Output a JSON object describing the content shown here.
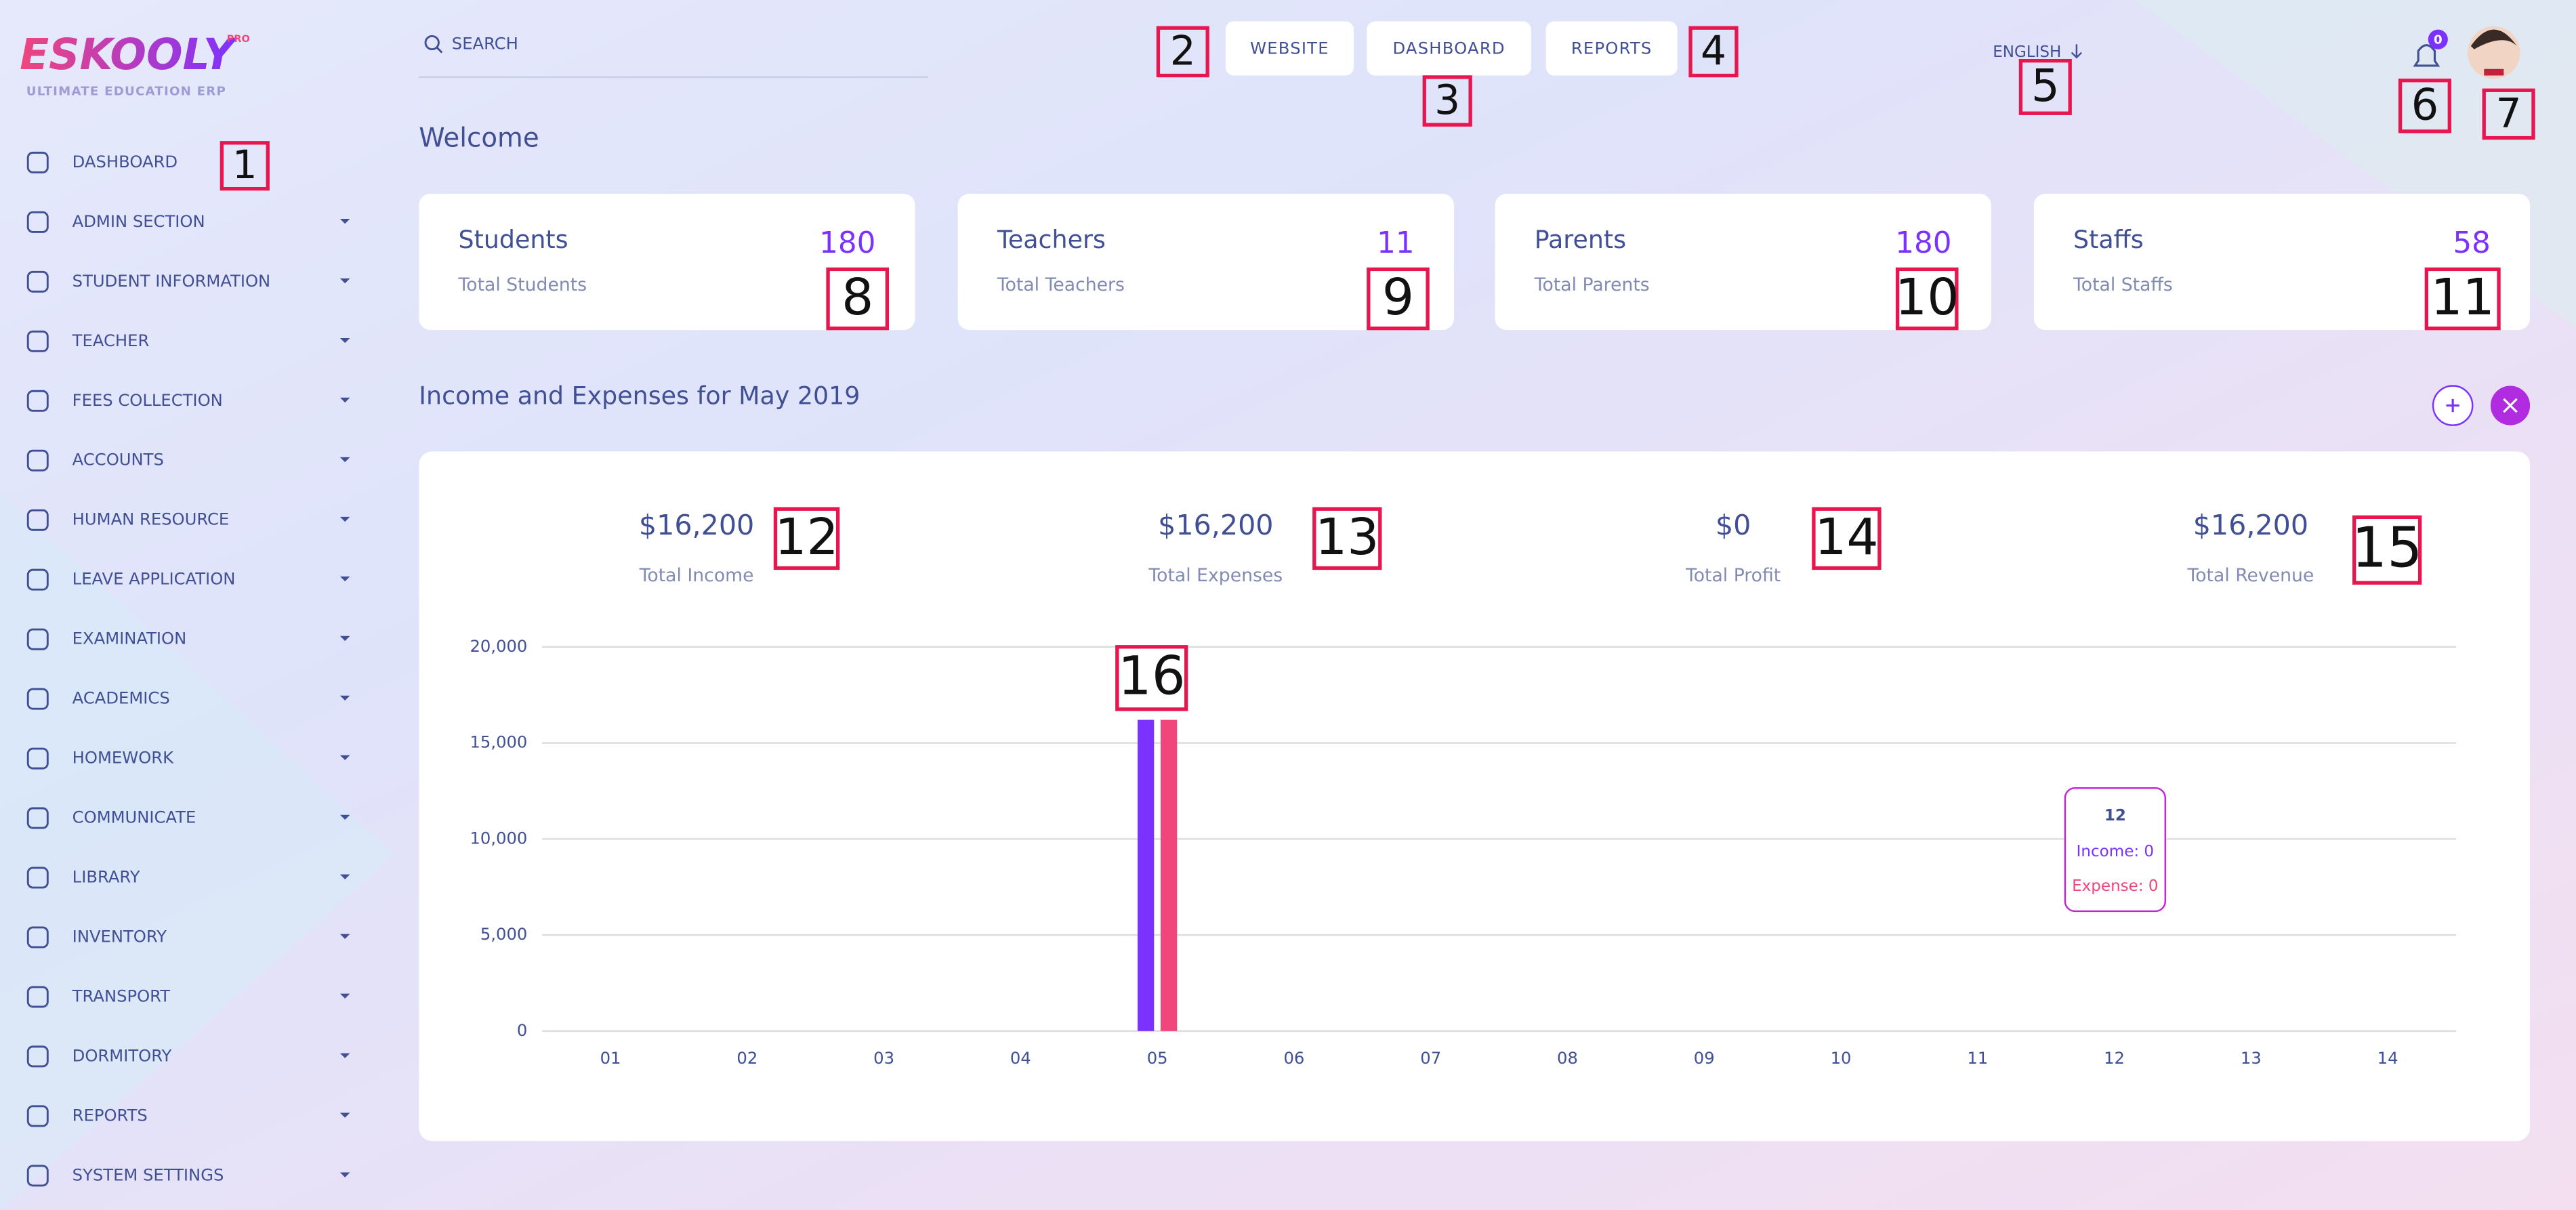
{
  "logo": {
    "name": "ESKOOLY",
    "badge": "PRO",
    "tagline": "ULTIMATE EDUCATION ERP"
  },
  "search": {
    "placeholder": "SEARCH"
  },
  "top_buttons": [
    "WEBSITE",
    "DASHBOARD",
    "REPORTS"
  ],
  "language": "ENGLISH",
  "notifications": {
    "count": 0
  },
  "sidebar": [
    "DASHBOARD",
    "ADMIN SECTION",
    "STUDENT INFORMATION",
    "TEACHER",
    "FEES COLLECTION",
    "ACCOUNTS",
    "HUMAN RESOURCE",
    "LEAVE APPLICATION",
    "EXAMINATION",
    "ACADEMICS",
    "HOMEWORK",
    "COMMUNICATE",
    "LIBRARY",
    "INVENTORY",
    "TRANSPORT",
    "DORMITORY",
    "REPORTS",
    "SYSTEM SETTINGS"
  ],
  "welcome": "Welcome",
  "cards": [
    {
      "title": "Students",
      "count": 180,
      "subtitle": "Total Students"
    },
    {
      "title": "Teachers",
      "count": 11,
      "subtitle": "Total Teachers"
    },
    {
      "title": "Parents",
      "count": 180,
      "subtitle": "Total Parents"
    },
    {
      "title": "Staffs",
      "count": 58,
      "subtitle": "Total Staffs"
    }
  ],
  "section_title": "Income and Expenses for May 2019",
  "summary": [
    {
      "value": "$16,200",
      "label": "Total Income"
    },
    {
      "value": "$16,200",
      "label": "Total Expenses"
    },
    {
      "value": "$0",
      "label": "Total Profit"
    },
    {
      "value": "$16,200",
      "label": "Total Revenue"
    }
  ],
  "chart_data": {
    "type": "bar",
    "categories": [
      "01",
      "02",
      "03",
      "04",
      "05",
      "06",
      "07",
      "08",
      "09",
      "10",
      "11",
      "12",
      "13",
      "14"
    ],
    "series": [
      {
        "color": "#7c32ff",
        "values": [
          0,
          0,
          0,
          0,
          16200,
          0,
          0,
          0,
          0,
          0,
          0,
          0,
          0,
          0
        ]
      },
      {
        "color": "#f0467c",
        "values": [
          0,
          0,
          0,
          0,
          16200,
          0,
          0,
          0,
          0,
          0,
          0,
          0,
          0,
          0
        ]
      }
    ],
    "ylim": [
      0,
      20000
    ],
    "yticks": [
      0,
      {
        "value": 5000,
        "label": "5,000"
      },
      {
        "value": 10000,
        "label": "10,000"
      },
      {
        "value": 15000,
        "label": "15,000"
      },
      {
        "value": 20000,
        "label": "20,000"
      }
    ],
    "grid": true,
    "tooltip": {
      "title": "12",
      "lines": [
        "Income: 0",
        "Expense: 0"
      ]
    }
  },
  "annotations": [
    "1",
    "2",
    "3",
    "4",
    "5",
    "6",
    "7",
    "8",
    "9",
    "10",
    "11",
    "12",
    "13",
    "14",
    "15",
    "16"
  ]
}
